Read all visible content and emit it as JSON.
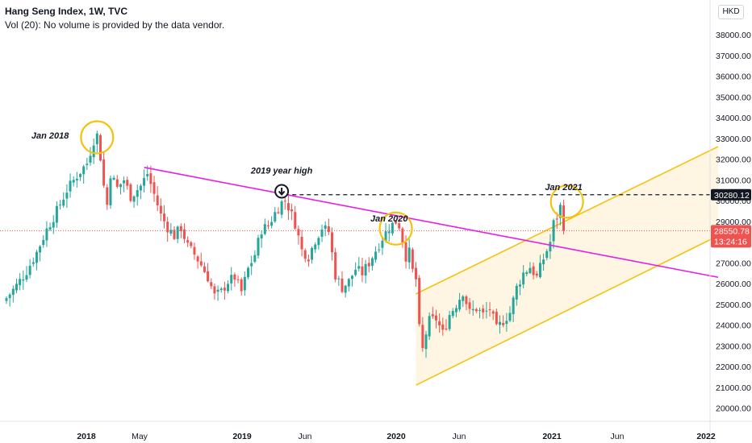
{
  "header": {
    "title": "Hang Seng Index, 1W, TVC",
    "volume_note": "Vol (20): No volume is provided by the data vendor."
  },
  "currency_button": "HKD",
  "colors": {
    "up": "#26a69a",
    "down": "#ef5350",
    "trendline": "#e81ee3",
    "channel": "#f5c20b",
    "channel_fill": "#fdf3d8",
    "circle": "#f5c20b",
    "last_price_tag": "#ef5350",
    "level_line": "#131722"
  },
  "chart_data": {
    "type": "candlestick",
    "symbol": "Hang Seng Index",
    "interval": "1W",
    "source": "TVC",
    "yaxis_ticks": [
      20000,
      21000,
      22000,
      23000,
      24000,
      25000,
      26000,
      27000,
      28000,
      29000,
      30000,
      31000,
      32000,
      33000,
      34000,
      35000,
      36000,
      37000,
      38000
    ],
    "yaxis_tick_labels": [
      "20000.00",
      "21000.00",
      "22000.00",
      "23000.00",
      "24000.00",
      "25000.00",
      "26000.00",
      "27000.00",
      "28000.00",
      "29000.00",
      "30000.00",
      "31000.00",
      "32000.00",
      "33000.00",
      "34000.00",
      "35000.00",
      "36000.00",
      "37000.00",
      "38000.00"
    ],
    "ylim": [
      19600,
      39400
    ],
    "xaxis_ticks": [
      {
        "label": "2018",
        "bold": true
      },
      {
        "label": "May",
        "bold": false
      },
      {
        "label": "2019",
        "bold": true
      },
      {
        "label": "Jun",
        "bold": false
      },
      {
        "label": "2020",
        "bold": true
      },
      {
        "label": "Jun",
        "bold": false
      },
      {
        "label": "2021",
        "bold": true
      },
      {
        "label": "Jun",
        "bold": false
      },
      {
        "label": "2022",
        "bold": true
      }
    ],
    "price_levels": [
      {
        "value": 30280.12,
        "label": "30280.12",
        "style": "dashed"
      },
      {
        "value": 28550.78,
        "label": "28550.78",
        "countdown": "13:24:16",
        "style": "dotted"
      }
    ],
    "annotations": [
      {
        "text": "Jan 2018",
        "week": 13,
        "value": 33000
      },
      {
        "text": "2019 year high",
        "week": 82,
        "value": 31300
      },
      {
        "text": "Jan 2020",
        "week": 114,
        "value": 29000
      },
      {
        "text": "Jan 2021",
        "week": 166,
        "value": 30500
      }
    ],
    "circles": [
      {
        "week": 27,
        "value": 33050
      },
      {
        "week": 116,
        "value": 28650
      },
      {
        "week": 167,
        "value": 29950
      }
    ],
    "trendline": {
      "from": {
        "week": 41,
        "value": 31600
      },
      "to": {
        "week": 212,
        "value": 26300
      }
    },
    "channel": {
      "upper": {
        "from": {
          "week": 122,
          "value": 25500
        },
        "to": {
          "week": 212,
          "value": 32600
        }
      },
      "lower": {
        "from": {
          "week": 122,
          "value": 21100
        },
        "to": {
          "week": 212,
          "value": 28300
        }
      }
    },
    "close_points": [
      [
        0,
        25300
      ],
      [
        3,
        25900
      ],
      [
        6,
        26600
      ],
      [
        9,
        27500
      ],
      [
        12,
        28600
      ],
      [
        15,
        29500
      ],
      [
        18,
        30500
      ],
      [
        21,
        31200
      ],
      [
        24,
        31800
      ],
      [
        26,
        32900
      ],
      [
        27,
        33150
      ],
      [
        28,
        32100
      ],
      [
        29,
        30700
      ],
      [
        30,
        29800
      ],
      [
        31,
        31300
      ],
      [
        33,
        30600
      ],
      [
        35,
        31000
      ],
      [
        37,
        30200
      ],
      [
        40,
        30700
      ],
      [
        42,
        31300
      ],
      [
        44,
        30300
      ],
      [
        46,
        29300
      ],
      [
        48,
        28700
      ],
      [
        50,
        28300
      ],
      [
        52,
        28700
      ],
      [
        54,
        27800
      ],
      [
        56,
        27400
      ],
      [
        58,
        26900
      ],
      [
        60,
        26300
      ],
      [
        62,
        25400
      ],
      [
        64,
        25600
      ],
      [
        66,
        26100
      ],
      [
        68,
        26300
      ],
      [
        70,
        25600
      ],
      [
        72,
        26700
      ],
      [
        74,
        27400
      ],
      [
        76,
        28600
      ],
      [
        78,
        28800
      ],
      [
        80,
        29400
      ],
      [
        82,
        29900
      ],
      [
        83,
        30000
      ],
      [
        84,
        29700
      ],
      [
        86,
        28900
      ],
      [
        88,
        27600
      ],
      [
        90,
        27300
      ],
      [
        92,
        28100
      ],
      [
        94,
        28700
      ],
      [
        96,
        28500
      ],
      [
        98,
        26400
      ],
      [
        100,
        25800
      ],
      [
        102,
        26100
      ],
      [
        104,
        26700
      ],
      [
        106,
        26500
      ],
      [
        108,
        27000
      ],
      [
        110,
        27600
      ],
      [
        112,
        28200
      ],
      [
        114,
        28700
      ],
      [
        116,
        29000
      ],
      [
        117,
        28800
      ],
      [
        118,
        28100
      ],
      [
        119,
        27300
      ],
      [
        120,
        27500
      ],
      [
        121,
        26600
      ],
      [
        122,
        26200
      ],
      [
        123,
        23800
      ],
      [
        124,
        22800
      ],
      [
        125,
        23600
      ],
      [
        126,
        24200
      ],
      [
        128,
        24300
      ],
      [
        130,
        23600
      ],
      [
        132,
        24500
      ],
      [
        134,
        25000
      ],
      [
        136,
        25600
      ],
      [
        138,
        24600
      ],
      [
        140,
        24800
      ],
      [
        142,
        24500
      ],
      [
        144,
        24800
      ],
      [
        146,
        23800
      ],
      [
        148,
        24200
      ],
      [
        150,
        24600
      ],
      [
        152,
        25800
      ],
      [
        154,
        26500
      ],
      [
        156,
        26800
      ],
      [
        158,
        26300
      ],
      [
        160,
        27200
      ],
      [
        162,
        28000
      ],
      [
        163,
        28900
      ],
      [
        164,
        29200
      ],
      [
        165,
        29700
      ],
      [
        166,
        28550
      ]
    ]
  }
}
